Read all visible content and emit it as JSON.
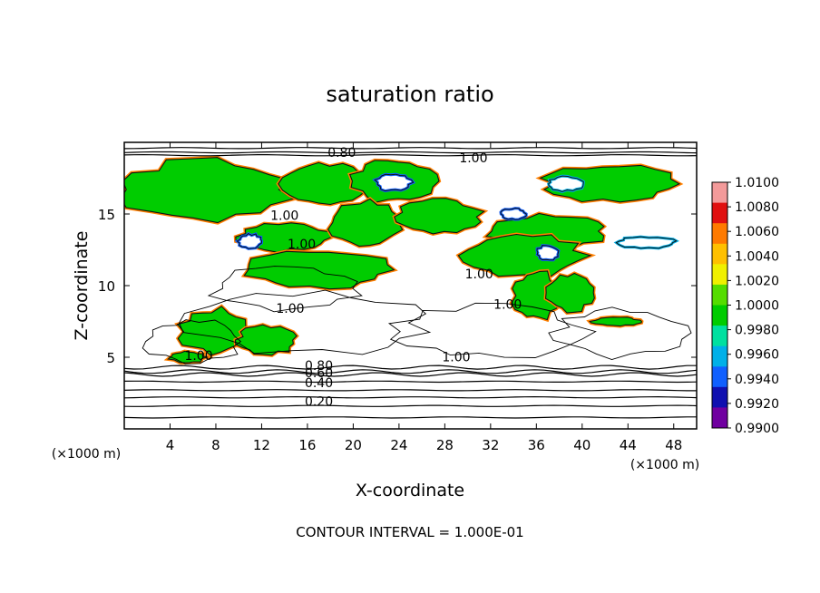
{
  "chart_data": {
    "type": "heatmap",
    "title": "saturation ratio",
    "xlabel": "X-coordinate",
    "ylabel": "Z-coordinate",
    "x_unit": "(×1000 m)",
    "z_unit": "(×1000 m)",
    "xlim": [
      0,
      50
    ],
    "ylim": [
      0,
      20
    ],
    "x_ticks": [
      4,
      8,
      12,
      16,
      20,
      24,
      28,
      32,
      36,
      40,
      44,
      48
    ],
    "x_tick_labels": [
      "4",
      "8",
      "12",
      "16",
      "20",
      "24",
      "28",
      "32",
      "36",
      "40",
      "44",
      "48"
    ],
    "y_ticks": [
      5,
      10,
      15
    ],
    "y_tick_labels": [
      "5",
      "10",
      "15"
    ],
    "colorbar": {
      "range": [
        0.99,
        1.01
      ],
      "tick_labels": [
        "1.0100",
        "1.0080",
        "1.0060",
        "1.0040",
        "1.0020",
        "1.0000",
        "0.9980",
        "0.9960",
        "0.9940",
        "0.9920",
        "0.9900"
      ],
      "colors": [
        "#f39a9a",
        "#e01010",
        "#ff7a00",
        "#ffc000",
        "#f0f000",
        "#55dd00",
        "#00cc00",
        "#00e0a0",
        "#00b0e8",
        "#1060ff",
        "#1010b0",
        "#7000a0"
      ]
    },
    "contour_interval_text": "CONTOUR INTERVAL = 1.000E-01",
    "contour_labels": [
      {
        "text": "0.80",
        "x": 19,
        "z": 19.0
      },
      {
        "text": "1.00",
        "x": 30.5,
        "z": 18.6
      },
      {
        "text": "1.00",
        "x": 14.0,
        "z": 14.6
      },
      {
        "text": "1.00",
        "x": 15.5,
        "z": 12.6
      },
      {
        "text": "1.00",
        "x": 14.5,
        "z": 8.1
      },
      {
        "text": "1.00",
        "x": 31.0,
        "z": 10.5
      },
      {
        "text": "1.00",
        "x": 33.5,
        "z": 8.4
      },
      {
        "text": "1.00",
        "x": 6.5,
        "z": 4.8
      },
      {
        "text": "1.00",
        "x": 29.0,
        "z": 4.7
      },
      {
        "text": "0.80",
        "x": 17.0,
        "z": 4.1
      },
      {
        "text": "0.60",
        "x": 17.0,
        "z": 3.6
      },
      {
        "text": "0.40",
        "x": 17.0,
        "z": 2.9
      },
      {
        "text": "0.20",
        "x": 17.0,
        "z": 1.6
      }
    ],
    "horizontal_contours_z": [
      0.8,
      1.6,
      2.2,
      2.7,
      3.3,
      3.8,
      4.0,
      4.3
    ],
    "top_contours_z": [
      19.6,
      19.3,
      19.1
    ],
    "saturated_regions": [
      {
        "x": [
          0,
          14
        ],
        "z": [
          14.6,
          18.8
        ],
        "level": 1.0
      },
      {
        "x": [
          14,
          21
        ],
        "z": [
          15.6,
          18.6
        ],
        "level": 1.0
      },
      {
        "x": [
          20,
          27
        ],
        "z": [
          15.8,
          18.8
        ],
        "level": 1.0
      },
      {
        "x": [
          37,
          48
        ],
        "z": [
          15.8,
          18.4
        ],
        "level": 1.0
      },
      {
        "x": [
          10,
          18
        ],
        "z": [
          12.4,
          14.4
        ],
        "level": 1.0
      },
      {
        "x": [
          18,
          24
        ],
        "z": [
          12.8,
          16.0
        ],
        "level": 1.0
      },
      {
        "x": [
          24,
          31
        ],
        "z": [
          13.6,
          16.0
        ],
        "level": 1.0
      },
      {
        "x": [
          32,
          42
        ],
        "z": [
          12.6,
          15.0
        ],
        "level": 1.0
      },
      {
        "x": [
          30,
          40
        ],
        "z": [
          10.6,
          13.6
        ],
        "level": 1.0
      },
      {
        "x": [
          11,
          23
        ],
        "z": [
          9.8,
          12.4
        ],
        "level": 1.0
      },
      {
        "x": [
          34,
          38
        ],
        "z": [
          7.6,
          11.0
        ],
        "level": 1.0
      },
      {
        "x": [
          37,
          41
        ],
        "z": [
          8.2,
          10.8
        ],
        "level": 1.0
      },
      {
        "x": [
          5,
          11
        ],
        "z": [
          5.2,
          8.4
        ],
        "level": 1.0
      },
      {
        "x": [
          10,
          15
        ],
        "z": [
          5.2,
          7.2
        ],
        "level": 1.0
      },
      {
        "x": [
          4,
          7
        ],
        "z": [
          4.6,
          5.4
        ],
        "level": 1.0
      },
      {
        "x": [
          41,
          45
        ],
        "z": [
          7.2,
          7.8
        ],
        "level": 1.0
      }
    ],
    "subsaturated_holes": [
      {
        "x": [
          22,
          25
        ],
        "z": [
          16.6,
          17.8
        ],
        "level": 0.994
      },
      {
        "x": [
          33,
          35
        ],
        "z": [
          14.6,
          15.4
        ],
        "level": 0.994
      },
      {
        "x": [
          37,
          40
        ],
        "z": [
          16.6,
          17.6
        ],
        "level": 0.996
      },
      {
        "x": [
          10,
          12
        ],
        "z": [
          12.6,
          13.6
        ],
        "level": 0.994
      },
      {
        "x": [
          43,
          48
        ],
        "z": [
          12.6,
          13.4
        ],
        "level": 0.996
      },
      {
        "x": [
          36,
          38
        ],
        "z": [
          11.8,
          12.8
        ],
        "level": 0.994
      }
    ],
    "grid": false,
    "legend": "colorbar-right"
  }
}
